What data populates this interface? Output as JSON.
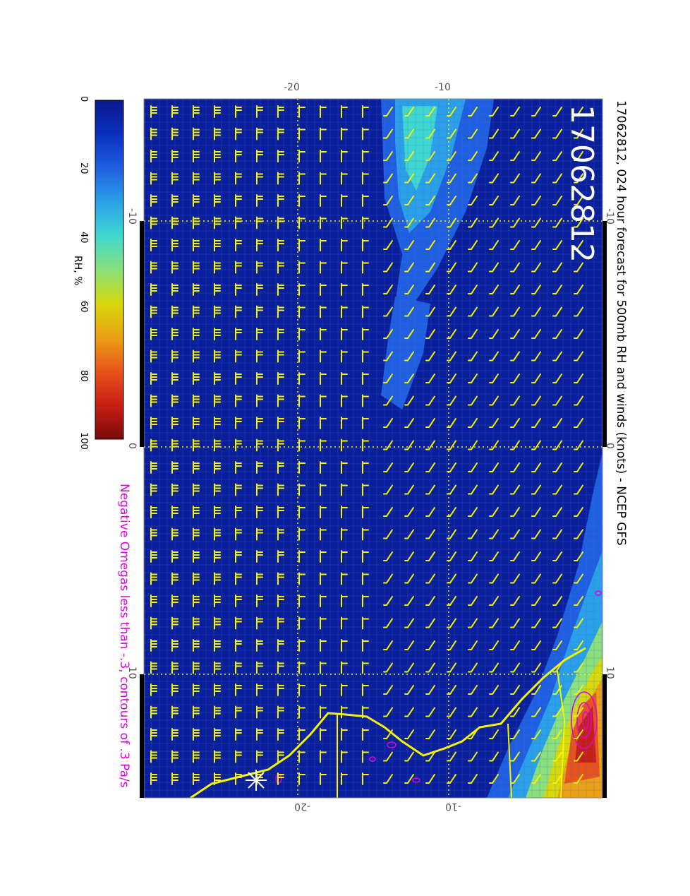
{
  "title": "17062812, 024 hour forecast for 500mb RH and winds (knots) - NCEP GFS",
  "run_label": "17062812",
  "subtitle": "Negative Omegas less than -.3, contours of .3 Pa/s",
  "colorbar": {
    "label": "RH, %",
    "ticks": [
      "0",
      "20",
      "40",
      "60",
      "80",
      "100"
    ],
    "colors": [
      "#0a1a8c",
      "#0a2fbe",
      "#1e5fe0",
      "#2aa0e8",
      "#3ed8d0",
      "#8ae07a",
      "#d6d80a",
      "#eaa014",
      "#e8541a",
      "#c81e14",
      "#7a0a0a"
    ]
  },
  "axes": {
    "top_labels": [
      "-20",
      "-10"
    ],
    "bottom_labels": [
      "-20",
      "-10"
    ],
    "left_labels": [
      "-10",
      "0",
      "10"
    ],
    "right_labels": [
      "-10",
      "0",
      "10"
    ]
  },
  "colors": {
    "barbs": "#f5f500",
    "coast": "#f5f500",
    "omega": "#e000e0",
    "subtitle": "#e000e0",
    "background_field": "#0a1f9a"
  }
}
